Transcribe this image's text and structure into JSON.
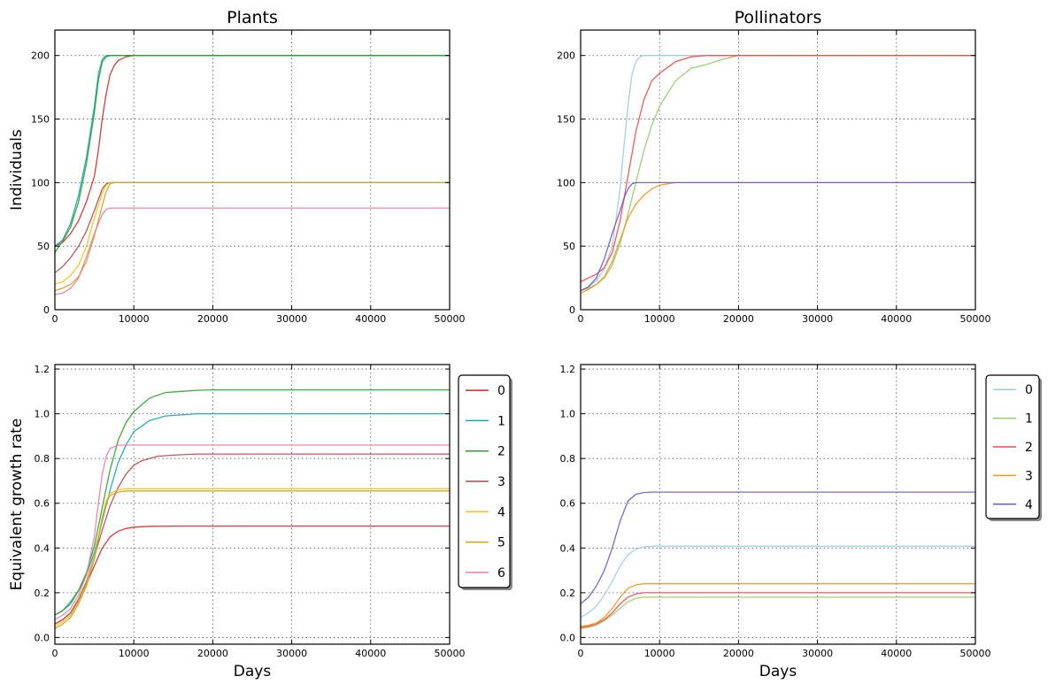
{
  "chart_data": [
    {
      "type": "line",
      "title": "Plants",
      "xlabel": "",
      "ylabel": "Individuals",
      "xlim": [
        0,
        50000
      ],
      "ylim": [
        0,
        220
      ],
      "xticks": [
        0,
        10000,
        20000,
        30000,
        40000,
        50000
      ],
      "yticks": [
        0,
        50,
        100,
        150,
        200
      ],
      "grid": true,
      "legend": null,
      "series": [
        {
          "color": "#d62728",
          "x": [
            0,
            1000,
            2000,
            3000,
            4000,
            5000,
            5500,
            6000,
            6500,
            7000,
            7500,
            8000,
            9000,
            10000,
            50000
          ],
          "y": [
            50,
            53,
            60,
            70,
            85,
            105,
            125,
            150,
            170,
            185,
            192,
            196,
            199,
            200,
            200
          ]
        },
        {
          "color": "#17a2b8",
          "x": [
            0,
            1000,
            2000,
            3000,
            4000,
            5000,
            5500,
            6000,
            6500,
            7000,
            50000
          ],
          "y": [
            50,
            55,
            68,
            90,
            120,
            160,
            185,
            197,
            200,
            200,
            200
          ]
        },
        {
          "color": "#2ca02c",
          "x": [
            0,
            1000,
            2000,
            3000,
            4000,
            5000,
            5500,
            6000,
            6500,
            7000,
            50000
          ],
          "y": [
            45,
            54,
            65,
            85,
            115,
            155,
            180,
            195,
            199,
            200,
            200
          ]
        },
        {
          "color": "#b5474b",
          "x": [
            0,
            1000,
            2000,
            3000,
            4000,
            5000,
            6000,
            6500,
            7000,
            50000
          ],
          "y": [
            29,
            34,
            41,
            50,
            62,
            78,
            95,
            99,
            100,
            100
          ]
        },
        {
          "color": "#f5c211",
          "x": [
            0,
            1000,
            2000,
            3000,
            4000,
            5000,
            6000,
            6500,
            7000,
            50000
          ],
          "y": [
            20,
            22,
            27,
            35,
            50,
            72,
            92,
            98,
            100,
            100
          ]
        },
        {
          "color": "#c8a226",
          "x": [
            0,
            1000,
            2000,
            3000,
            4000,
            5000,
            6000,
            6500,
            7000,
            7500,
            50000
          ],
          "y": [
            15,
            17,
            20,
            26,
            38,
            58,
            82,
            93,
            99,
            100,
            100
          ]
        },
        {
          "color": "#f07a9a",
          "x": [
            0,
            1000,
            2000,
            3000,
            4000,
            5000,
            6000,
            6500,
            7000,
            50000
          ],
          "y": [
            12,
            13,
            17,
            25,
            42,
            60,
            75,
            79,
            80,
            80
          ]
        }
      ]
    },
    {
      "type": "line",
      "title": "Pollinators",
      "xlabel": "",
      "ylabel": "",
      "xlim": [
        0,
        50000
      ],
      "ylim": [
        0,
        220
      ],
      "xticks": [
        0,
        10000,
        20000,
        30000,
        40000,
        50000
      ],
      "yticks": [
        0,
        50,
        100,
        150,
        200
      ],
      "grid": true,
      "legend": null,
      "series": [
        {
          "color": "#9ecae1",
          "x": [
            0,
            1000,
            2000,
            3000,
            4000,
            5000,
            5500,
            6000,
            6500,
            7000,
            7500,
            8000,
            50000
          ],
          "y": [
            15,
            18,
            23,
            32,
            50,
            95,
            130,
            160,
            185,
            195,
            199,
            200,
            200
          ]
        },
        {
          "color": "#8fcc6a",
          "x": [
            0,
            1000,
            2000,
            3000,
            4000,
            5000,
            6000,
            7000,
            8000,
            9000,
            10000,
            12000,
            14000,
            16000,
            18000,
            20000,
            50000
          ],
          "y": [
            15,
            17,
            20,
            25,
            35,
            52,
            75,
            100,
            125,
            145,
            160,
            180,
            190,
            193,
            197,
            200,
            200
          ]
        },
        {
          "color": "#f04a4a",
          "x": [
            0,
            1000,
            2000,
            3000,
            4000,
            5000,
            6000,
            7000,
            8000,
            9000,
            10000,
            12000,
            14000,
            16000,
            17000,
            50000
          ],
          "y": [
            22,
            25,
            28,
            33,
            45,
            70,
            105,
            140,
            165,
            180,
            186,
            195,
            199,
            200,
            200,
            200
          ]
        },
        {
          "color": "#f7941d",
          "x": [
            0,
            1000,
            2000,
            3000,
            4000,
            5000,
            6000,
            7000,
            8000,
            9000,
            10000,
            11000,
            12000,
            50000
          ],
          "y": [
            13,
            16,
            20,
            26,
            38,
            55,
            72,
            83,
            90,
            95,
            98,
            99,
            100,
            100
          ]
        },
        {
          "color": "#6a5acd",
          "x": [
            0,
            1000,
            2000,
            3000,
            4000,
            5000,
            5500,
            6000,
            6500,
            7000,
            50000
          ],
          "y": [
            15,
            18,
            25,
            40,
            60,
            78,
            88,
            95,
            99,
            100,
            100
          ]
        }
      ]
    },
    {
      "type": "line",
      "title": "",
      "xlabel": "Days",
      "ylabel": "Equivalent growth rate",
      "xlim": [
        0,
        50000
      ],
      "ylim": [
        -0.03,
        1.22
      ],
      "xticks": [
        0,
        10000,
        20000,
        30000,
        40000,
        50000
      ],
      "yticks": [
        0.0,
        0.2,
        0.4,
        0.6,
        0.8,
        1.0,
        1.2
      ],
      "grid": true,
      "legend": "right-outside",
      "series": [
        {
          "name": "0",
          "color": "#d62728",
          "x": [
            0,
            1000,
            2000,
            3000,
            4000,
            5000,
            6000,
            7000,
            8000,
            9000,
            10000,
            12000,
            15000,
            50000
          ],
          "y": [
            0.06,
            0.08,
            0.11,
            0.17,
            0.24,
            0.32,
            0.4,
            0.45,
            0.475,
            0.487,
            0.493,
            0.497,
            0.498,
            0.498
          ]
        },
        {
          "name": "1",
          "color": "#17a2b8",
          "x": [
            0,
            1000,
            2000,
            3000,
            4000,
            5000,
            6000,
            7000,
            8000,
            9000,
            10000,
            12000,
            14000,
            16000,
            18000,
            20000,
            50000
          ],
          "y": [
            0.1,
            0.12,
            0.15,
            0.21,
            0.28,
            0.38,
            0.52,
            0.66,
            0.78,
            0.86,
            0.92,
            0.97,
            0.99,
            0.995,
            1.0,
            1.0,
            1.0
          ]
        },
        {
          "name": "2",
          "color": "#2ca02c",
          "x": [
            0,
            1000,
            2000,
            3000,
            4000,
            5000,
            6000,
            7000,
            8000,
            9000,
            10000,
            12000,
            14000,
            16000,
            18000,
            20000,
            50000
          ],
          "y": [
            0.1,
            0.12,
            0.16,
            0.21,
            0.29,
            0.41,
            0.58,
            0.75,
            0.88,
            0.96,
            1.01,
            1.07,
            1.095,
            1.1,
            1.105,
            1.107,
            1.107
          ]
        },
        {
          "name": "3",
          "color": "#b5474b",
          "x": [
            0,
            1000,
            2000,
            3000,
            4000,
            5000,
            6000,
            7000,
            8000,
            9000,
            10000,
            11000,
            12000,
            13000,
            15000,
            18000,
            50000
          ],
          "y": [
            0.06,
            0.08,
            0.11,
            0.17,
            0.25,
            0.36,
            0.48,
            0.59,
            0.67,
            0.73,
            0.77,
            0.79,
            0.8,
            0.81,
            0.815,
            0.82,
            0.82
          ]
        },
        {
          "name": "4",
          "color": "#f5c211",
          "x": [
            0,
            1000,
            2000,
            3000,
            4000,
            5000,
            5500,
            6000,
            6500,
            7000,
            8000,
            9000,
            10000,
            50000
          ],
          "y": [
            0.05,
            0.07,
            0.1,
            0.16,
            0.24,
            0.36,
            0.45,
            0.54,
            0.61,
            0.645,
            0.66,
            0.665,
            0.665,
            0.665
          ]
        },
        {
          "name": "5",
          "color": "#c8a226",
          "x": [
            0,
            1000,
            2000,
            3000,
            4000,
            5000,
            5500,
            6000,
            6500,
            7000,
            8000,
            9000,
            10000,
            50000
          ],
          "y": [
            0.04,
            0.06,
            0.09,
            0.15,
            0.23,
            0.35,
            0.44,
            0.53,
            0.6,
            0.635,
            0.65,
            0.655,
            0.655,
            0.655
          ]
        },
        {
          "name": "6",
          "color": "#f07a9a",
          "x": [
            0,
            1000,
            2000,
            3000,
            4000,
            5000,
            5500,
            6000,
            6500,
            7000,
            8000,
            50000
          ],
          "y": [
            0.08,
            0.1,
            0.13,
            0.19,
            0.28,
            0.45,
            0.6,
            0.73,
            0.81,
            0.845,
            0.86,
            0.86
          ]
        }
      ]
    },
    {
      "type": "line",
      "title": "",
      "xlabel": "Days",
      "ylabel": "",
      "xlim": [
        0,
        50000
      ],
      "ylim": [
        -0.03,
        1.22
      ],
      "xticks": [
        0,
        10000,
        20000,
        30000,
        40000,
        50000
      ],
      "yticks": [
        0.0,
        0.2,
        0.4,
        0.6,
        0.8,
        1.0,
        1.2
      ],
      "grid": true,
      "legend": "right-outside",
      "series": [
        {
          "name": "0",
          "color": "#9ecae1",
          "x": [
            0,
            1000,
            2000,
            3000,
            4000,
            5000,
            6000,
            7000,
            8000,
            9000,
            10000,
            50000
          ],
          "y": [
            0.09,
            0.11,
            0.14,
            0.19,
            0.25,
            0.32,
            0.37,
            0.395,
            0.405,
            0.408,
            0.408,
            0.408
          ]
        },
        {
          "name": "1",
          "color": "#8fcc6a",
          "x": [
            0,
            1000,
            2000,
            3000,
            4000,
            5000,
            6000,
            7000,
            8000,
            9000,
            10000,
            50000
          ],
          "y": [
            0.04,
            0.045,
            0.055,
            0.075,
            0.1,
            0.13,
            0.16,
            0.175,
            0.18,
            0.18,
            0.18,
            0.18
          ]
        },
        {
          "name": "2",
          "color": "#f04a4a",
          "x": [
            0,
            1000,
            2000,
            3000,
            4000,
            5000,
            6000,
            7000,
            8000,
            9000,
            10000,
            50000
          ],
          "y": [
            0.045,
            0.05,
            0.06,
            0.08,
            0.11,
            0.15,
            0.18,
            0.195,
            0.2,
            0.2,
            0.2,
            0.2
          ]
        },
        {
          "name": "3",
          "color": "#f7941d",
          "x": [
            0,
            1000,
            2000,
            3000,
            4000,
            5000,
            6000,
            7000,
            8000,
            9000,
            10000,
            50000
          ],
          "y": [
            0.05,
            0.055,
            0.065,
            0.09,
            0.13,
            0.18,
            0.22,
            0.235,
            0.24,
            0.24,
            0.24,
            0.24
          ]
        },
        {
          "name": "4",
          "color": "#6a5acd",
          "x": [
            0,
            1000,
            2000,
            3000,
            4000,
            5000,
            6000,
            7000,
            8000,
            9000,
            10000,
            50000
          ],
          "y": [
            0.15,
            0.18,
            0.23,
            0.3,
            0.4,
            0.52,
            0.61,
            0.64,
            0.648,
            0.65,
            0.65,
            0.65
          ]
        }
      ]
    }
  ]
}
